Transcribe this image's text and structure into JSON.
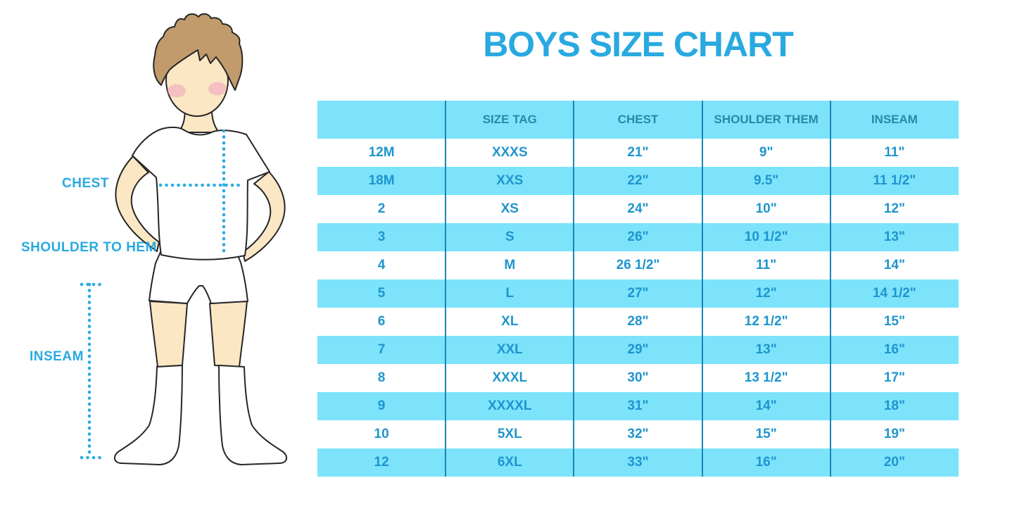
{
  "title": "BOYS SIZE CHART",
  "figure": {
    "labels": {
      "chest": "CHEST",
      "shoulder_to_hem": "SHOULDER TO HEM",
      "inseam": "INSEAM"
    }
  },
  "colors": {
    "title_blue": "#29A9E0",
    "label_blue": "#29A9E0",
    "dotted_line_blue": "#29ABE2",
    "table_stripe_blue": "#7CE3FB",
    "table_divider_blue": "#1987B4",
    "table_header_text": "#2B87A8",
    "table_body_text": "#1E95CD",
    "skin": "#FBE7C4",
    "hair": "#C19B6B",
    "blush": "#F2A9BE"
  },
  "chart_data": {
    "type": "table",
    "title": "BOYS SIZE CHART",
    "columns": [
      "",
      "SIZE TAG",
      "CHEST",
      "SHOULDER THEM",
      "INSEAM"
    ],
    "rows": [
      [
        "12M",
        "XXXS",
        "21\"",
        "9\"",
        "11\""
      ],
      [
        "18M",
        "XXS",
        "22\"",
        "9.5\"",
        "11 1/2\""
      ],
      [
        "2",
        "XS",
        "24\"",
        "10\"",
        "12\""
      ],
      [
        "3",
        "S",
        "26\"",
        "10 1/2\"",
        "13\""
      ],
      [
        "4",
        "M",
        "26 1/2\"",
        "11\"",
        "14\""
      ],
      [
        "5",
        "L",
        "27\"",
        "12\"",
        "14 1/2\""
      ],
      [
        "6",
        "XL",
        "28\"",
        "12 1/2\"",
        "15\""
      ],
      [
        "7",
        "XXL",
        "29\"",
        "13\"",
        "16\""
      ],
      [
        "8",
        "XXXL",
        "30\"",
        "13 1/2\"",
        "17\""
      ],
      [
        "9",
        "XXXXL",
        "31\"",
        "14\"",
        "18\""
      ],
      [
        "10",
        "5XL",
        "32\"",
        "15\"",
        "19\""
      ],
      [
        "12",
        "6XL",
        "33\"",
        "16\"",
        "20\""
      ]
    ],
    "layout": {
      "striped": true,
      "stripe_pattern": "header blue, rows alternate white then blue",
      "column_dividers": 4,
      "grid": "vertical lines only"
    }
  }
}
